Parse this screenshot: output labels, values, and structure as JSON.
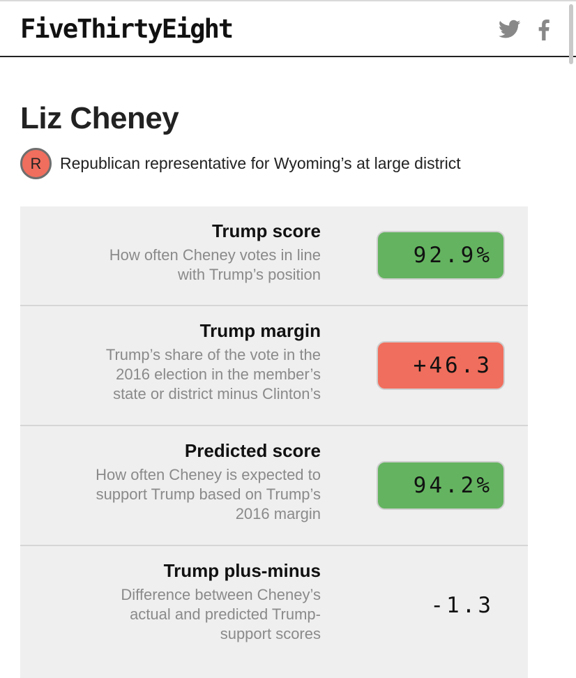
{
  "header": {
    "logo": "FiveThirtyEight",
    "share_icons": [
      "twitter-icon",
      "facebook-icon"
    ]
  },
  "member": {
    "name": "Liz Cheney",
    "party": "R",
    "party_color": "#f06e5d",
    "description": "Republican representative for Wyoming’s at large district"
  },
  "colors": {
    "good": "#64b360",
    "bad": "#f06e5d"
  },
  "rows": [
    {
      "title": "Trump score",
      "desc": [
        "How often Cheney votes in line",
        "with Trump’s position"
      ],
      "value": "92.9%",
      "highlight": "good"
    },
    {
      "title": "Trump margin",
      "desc": [
        "Trump’s share of the vote in the",
        "2016 election in the member’s",
        "state or district minus Clinton’s"
      ],
      "value": "+46.3",
      "highlight": "bad"
    },
    {
      "title": "Predicted score",
      "desc": [
        "How often Cheney is expected to",
        "support Trump based on Trump’s",
        "2016 margin"
      ],
      "value": "94.2%",
      "highlight": "good"
    },
    {
      "title": "Trump plus-minus",
      "desc": [
        "Difference between Cheney’s",
        "actual and predicted Trump-",
        "support scores"
      ],
      "value": "-1.3",
      "highlight": "none"
    }
  ]
}
